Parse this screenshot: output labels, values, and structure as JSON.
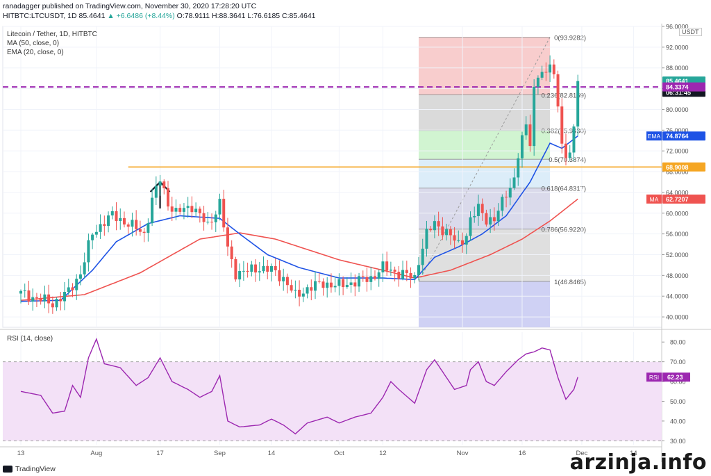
{
  "header": {
    "line1": "ranadagger published on TradingView.com, November 30, 2020 17:28:20 UTC",
    "line2_prefix": "HITBTC:LTCUSDT, 1D 85.4641 ",
    "line2_change": "▲ +6.6486 (+8.44%)",
    "line2_suffix": " O:78.9111 H:88.3641 L:76.6185 C:85.4641"
  },
  "legend": {
    "title": "Litecoin / Tether, 1D, HITBTC",
    "ma": "MA (50, close, 0)",
    "ema": "EMA (20, close, 0)"
  },
  "unit_label": "USDT",
  "watermark": "arzinja.info",
  "branding": "TradingView",
  "chart_data": [
    {
      "type": "candlestick",
      "title": "Litecoin / Tether, 1D, HITBTC",
      "ylim": [
        38.0,
        96.0
      ],
      "y_ticks": [
        40,
        44,
        48,
        52,
        56,
        60,
        64,
        68,
        72,
        76,
        80,
        84,
        88,
        92,
        96
      ],
      "y_tick_labels": [
        "40.0000",
        "44.0000",
        "48.0000",
        "52.0000",
        "56.0000",
        "60.0000",
        "64.0000",
        "68.0000",
        "72.0000",
        "76.0000",
        "80.0000",
        "84.0000",
        "88.0000",
        "92.0000",
        "96.0000"
      ],
      "x_ticks": [
        {
          "label": "13",
          "day": 0
        },
        {
          "label": "Aug",
          "day": 19
        },
        {
          "label": "17",
          "day": 35
        },
        {
          "label": "Sep",
          "day": 50
        },
        {
          "label": "14",
          "day": 63
        },
        {
          "label": "Oct",
          "day": 80
        },
        {
          "label": "12",
          "day": 91
        },
        {
          "label": "Nov",
          "day": 111
        },
        {
          "label": "16",
          "day": 126
        },
        {
          "label": "Dec",
          "day": 141
        },
        {
          "label": "14",
          "day": 154
        }
      ],
      "anchors": [
        [
          0,
          44.5
        ],
        [
          4,
          43.6
        ],
        [
          8,
          42.6
        ],
        [
          12,
          44.8
        ],
        [
          15,
          48.5
        ],
        [
          18,
          56.0
        ],
        [
          21,
          58.5
        ],
        [
          23,
          59.5
        ],
        [
          27,
          58.0
        ],
        [
          31,
          56.0
        ],
        [
          33,
          62.5
        ],
        [
          35,
          66.5
        ],
        [
          37,
          62.0
        ],
        [
          39,
          60.0
        ],
        [
          43,
          61.5
        ],
        [
          47,
          57.5
        ],
        [
          50,
          62.0
        ],
        [
          52,
          53.0
        ],
        [
          54,
          48.5
        ],
        [
          57,
          48.8
        ],
        [
          60,
          49.5
        ],
        [
          63,
          49.0
        ],
        [
          66,
          47.5
        ],
        [
          69,
          44.0
        ],
        [
          72,
          45.5
        ],
        [
          76,
          46.5
        ],
        [
          80,
          46.0
        ],
        [
          84,
          46.8
        ],
        [
          88,
          47.5
        ],
        [
          91,
          49.5
        ],
        [
          95,
          48.5
        ],
        [
          99,
          47.5
        ],
        [
          100,
          51.0
        ],
        [
          102,
          56.0
        ],
        [
          104,
          58.0
        ],
        [
          106,
          57.0
        ],
        [
          108,
          55.5
        ],
        [
          110,
          54.0
        ],
        [
          112,
          56.0
        ],
        [
          113,
          58.5
        ],
        [
          115,
          61.0
        ],
        [
          117,
          59.0
        ],
        [
          119,
          58.5
        ],
        [
          122,
          64.0
        ],
        [
          124,
          66.5
        ],
        [
          125,
          71.0
        ],
        [
          127,
          77.0
        ],
        [
          128,
          74.0
        ],
        [
          129,
          84.0
        ],
        [
          130,
          86.5
        ],
        [
          131,
          87.0
        ],
        [
          132,
          86.0
        ],
        [
          133,
          89.5
        ],
        [
          134,
          87.0
        ],
        [
          135,
          80.5
        ],
        [
          136,
          74.0
        ],
        [
          137,
          69.5
        ],
        [
          138,
          71.5
        ],
        [
          139,
          77.5
        ],
        [
          140,
          85.4641
        ]
      ],
      "ma50_anchors": [
        [
          0,
          43.2
        ],
        [
          16,
          44.3
        ],
        [
          30,
          48.5
        ],
        [
          45,
          55.0
        ],
        [
          55,
          56.2
        ],
        [
          64,
          55.0
        ],
        [
          80,
          51.0
        ],
        [
          91,
          49.0
        ],
        [
          99,
          47.5
        ],
        [
          108,
          49.0
        ],
        [
          118,
          52.0
        ],
        [
          126,
          55.0
        ],
        [
          133,
          58.5
        ],
        [
          140,
          62.7207
        ]
      ],
      "ema20_anchors": [
        [
          0,
          43.0
        ],
        [
          10,
          43.2
        ],
        [
          18,
          49.0
        ],
        [
          24,
          54.5
        ],
        [
          32,
          58.0
        ],
        [
          40,
          59.5
        ],
        [
          50,
          59.0
        ],
        [
          55,
          56.0
        ],
        [
          62,
          52.0
        ],
        [
          70,
          49.5
        ],
        [
          80,
          47.5
        ],
        [
          91,
          47.5
        ],
        [
          99,
          47.2
        ],
        [
          104,
          51.5
        ],
        [
          110,
          53.5
        ],
        [
          116,
          56.0
        ],
        [
          122,
          59.5
        ],
        [
          128,
          66.0
        ],
        [
          133,
          73.5
        ],
        [
          136,
          72.5
        ],
        [
          140,
          74.8764
        ]
      ],
      "fibonacci": {
        "levels": [
          {
            "ratio": 0,
            "value": 93.9282,
            "label": "0(93.9282)",
            "fill": "#f7c4c4"
          },
          {
            "ratio": 0.236,
            "value": 82.8169,
            "label": "0.236(82.8169)",
            "fill": "#d4d4d4"
          },
          {
            "ratio": 0.382,
            "value": 75.943,
            "label": "0.382(75.9430)",
            "fill": "#c9f2c9"
          },
          {
            "ratio": 0.5,
            "value": 70.3874,
            "label": "0.5(70.3874)",
            "fill": "#d6eaf8"
          },
          {
            "ratio": 0.618,
            "value": 64.8317,
            "label": "0.618(64.8317)",
            "fill": "#d4d4e8"
          },
          {
            "ratio": 0.786,
            "value": 56.922,
            "label": "0.786(56.9220)",
            "fill": "#d9d9d9"
          },
          {
            "ratio": 1,
            "value": 46.8465,
            "label": "1(46.8465)",
            "fill": "#c7c9f2"
          }
        ],
        "start_day": 100,
        "end_day": 133
      },
      "horizontal_lines": [
        {
          "value": 84.3374,
          "color": "#9c27b0",
          "style": "dashed",
          "label": "84.3374"
        },
        {
          "value": 68.9008,
          "color": "#f5a623",
          "style": "solid",
          "label": "68.9008"
        }
      ],
      "price_labels": [
        {
          "text": "85.4641",
          "value": 85.4641,
          "color": "#26a69a"
        },
        {
          "text": "06:31:45",
          "value": 83.3,
          "color": "#131722"
        },
        {
          "text": "84.3374",
          "value": 84.3374,
          "color": "#9c27b0"
        },
        {
          "text": "74.8764",
          "value": 74.8764,
          "color": "#1e53e5",
          "tag": "EMA"
        },
        {
          "text": "68.9008",
          "value": 68.9008,
          "color": "#f5a623"
        },
        {
          "text": "62.7207",
          "value": 62.7207,
          "color": "#ef5350",
          "tag": "MA"
        }
      ],
      "colors": {
        "up": "#26a69a",
        "down": "#ef5350",
        "ema": "#1e53e5",
        "ma": "#ef5350"
      }
    },
    {
      "type": "line",
      "title": "RSI (14, close)",
      "ylim": [
        28,
        85
      ],
      "y_ticks": [
        30,
        40,
        50,
        60,
        70,
        80
      ],
      "y_tick_labels": [
        "30.00",
        "40.00",
        "50.00",
        "60.00",
        "70.00",
        "80.00"
      ],
      "band": [
        30,
        70
      ],
      "rsi_anchors": [
        [
          0,
          55.0
        ],
        [
          5,
          53.0
        ],
        [
          8,
          44.0
        ],
        [
          11,
          45.0
        ],
        [
          13,
          58.0
        ],
        [
          15,
          52.0
        ],
        [
          17,
          72.0
        ],
        [
          19,
          81.5
        ],
        [
          21,
          69.0
        ],
        [
          25,
          67.0
        ],
        [
          29,
          58.0
        ],
        [
          32,
          62.0
        ],
        [
          35,
          72.0
        ],
        [
          38,
          60.0
        ],
        [
          42,
          56.0
        ],
        [
          45,
          52.0
        ],
        [
          48,
          55.0
        ],
        [
          50,
          63.0
        ],
        [
          52,
          40.0
        ],
        [
          55,
          37.0
        ],
        [
          60,
          38.0
        ],
        [
          63,
          41.0
        ],
        [
          66,
          38.0
        ],
        [
          69,
          33.5
        ],
        [
          72,
          39.0
        ],
        [
          77,
          42.0
        ],
        [
          80,
          39.0
        ],
        [
          84,
          42.0
        ],
        [
          88,
          44.0
        ],
        [
          91,
          52.0
        ],
        [
          93,
          60.0
        ],
        [
          95,
          56.0
        ],
        [
          99,
          49.0
        ],
        [
          102,
          66.0
        ],
        [
          104,
          71.0
        ],
        [
          106,
          65.0
        ],
        [
          109,
          56.0
        ],
        [
          112,
          58.0
        ],
        [
          113,
          66.0
        ],
        [
          115,
          70.0
        ],
        [
          117,
          60.0
        ],
        [
          119,
          58.0
        ],
        [
          122,
          65.0
        ],
        [
          124,
          69.0
        ],
        [
          125,
          71.0
        ],
        [
          127,
          74.0
        ],
        [
          129,
          75.0
        ],
        [
          131,
          77.0
        ],
        [
          133,
          76.0
        ],
        [
          135,
          62.0
        ],
        [
          137,
          51.0
        ],
        [
          139,
          56.0
        ],
        [
          140,
          62.23
        ]
      ],
      "last_value": 62.23,
      "last_label": "62.23",
      "tag": "RSI",
      "color": "#9c27b0",
      "band_fill": "#f3e1f7"
    }
  ]
}
